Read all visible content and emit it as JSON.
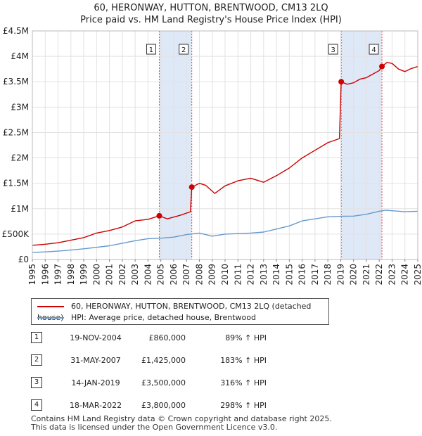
{
  "title": {
    "line1": "60, HERONWAY, HUTTON, BRENTWOOD, CM13 2LQ",
    "line2": "Price paid vs. HM Land Registry's House Price Index (HPI)"
  },
  "chart_data": {
    "type": "line",
    "title": "60, HERONWAY, HUTTON, BRENTWOOD, CM13 2LQ — Price paid vs. HM Land Registry's House Price Index (HPI)",
    "xlim": [
      1995,
      2025
    ],
    "ylim": [
      0,
      4500000
    ],
    "y_ticks": [
      {
        "value": 0,
        "label": "£0"
      },
      {
        "value": 500000,
        "label": "£500K"
      },
      {
        "value": 1000000,
        "label": "£1M"
      },
      {
        "value": 1500000,
        "label": "£1.5M"
      },
      {
        "value": 2000000,
        "label": "£2M"
      },
      {
        "value": 2500000,
        "label": "£2.5M"
      },
      {
        "value": 3000000,
        "label": "£3M"
      },
      {
        "value": 3500000,
        "label": "£3.5M"
      },
      {
        "value": 4000000,
        "label": "£4M"
      },
      {
        "value": 4500000,
        "label": "£4.5M"
      }
    ],
    "x_ticks": [
      "1995",
      "1996",
      "1997",
      "1998",
      "1999",
      "2000",
      "2001",
      "2002",
      "2003",
      "2004",
      "2005",
      "2006",
      "2007",
      "2008",
      "2009",
      "2010",
      "2011",
      "2012",
      "2013",
      "2014",
      "2015",
      "2016",
      "2017",
      "2018",
      "2019",
      "2020",
      "2021",
      "2022",
      "2023",
      "2024",
      "2025"
    ],
    "grid": true,
    "shaded_ranges": [
      [
        2004.88,
        2007.41
      ],
      [
        2019.04,
        2022.21
      ]
    ],
    "sale_markers": [
      {
        "label": "1",
        "x": 2004.88,
        "y": 860000
      },
      {
        "label": "2",
        "x": 2007.41,
        "y": 1425000
      },
      {
        "label": "3",
        "x": 2019.04,
        "y": 3500000
      },
      {
        "label": "4",
        "x": 2022.21,
        "y": 3800000
      }
    ],
    "series": [
      {
        "name": "60, HERONWAY, HUTTON, BRENTWOOD, CM13 2LQ (detached house)",
        "color": "#cc0000",
        "x": [
          1995.0,
          1996.0,
          1997.0,
          1998.0,
          1999.0,
          2000.0,
          2001.0,
          2002.0,
          2003.0,
          2004.0,
          2004.88,
          2005.5,
          2006.5,
          2007.3,
          2007.41,
          2008.0,
          2008.5,
          2009.2,
          2010.0,
          2011.0,
          2012.0,
          2013.0,
          2014.0,
          2015.0,
          2016.0,
          2017.0,
          2018.0,
          2018.9,
          2019.04,
          2019.5,
          2020.0,
          2020.5,
          2021.0,
          2021.5,
          2022.0,
          2022.21,
          2022.6,
          2023.0,
          2023.5,
          2024.0,
          2024.5,
          2025.0
        ],
        "y": [
          280000,
          300000,
          330000,
          380000,
          430000,
          520000,
          570000,
          640000,
          760000,
          790000,
          860000,
          800000,
          870000,
          940000,
          1425000,
          1500000,
          1460000,
          1300000,
          1450000,
          1550000,
          1600000,
          1520000,
          1650000,
          1800000,
          2000000,
          2150000,
          2300000,
          2380000,
          3500000,
          3450000,
          3480000,
          3550000,
          3580000,
          3650000,
          3720000,
          3800000,
          3880000,
          3860000,
          3750000,
          3700000,
          3760000,
          3800000
        ]
      },
      {
        "name": "HPI: Average price, detached house, Brentwood",
        "color": "#6699cc",
        "x": [
          1995.0,
          1996.0,
          1997.0,
          1998.0,
          1999.0,
          2000.0,
          2001.0,
          2002.0,
          2003.0,
          2004.0,
          2005.0,
          2006.0,
          2007.0,
          2008.0,
          2009.0,
          2010.0,
          2011.0,
          2012.0,
          2013.0,
          2014.0,
          2015.0,
          2016.0,
          2017.0,
          2018.0,
          2019.0,
          2020.0,
          2021.0,
          2022.0,
          2022.5,
          2023.0,
          2024.0,
          2025.0
        ],
        "y": [
          140000,
          150000,
          165000,
          185000,
          210000,
          240000,
          270000,
          320000,
          370000,
          410000,
          420000,
          440000,
          490000,
          520000,
          460000,
          500000,
          510000,
          520000,
          540000,
          600000,
          660000,
          760000,
          800000,
          840000,
          850000,
          855000,
          890000,
          950000,
          970000,
          960000,
          940000,
          950000
        ]
      }
    ]
  },
  "legend": {
    "items": [
      {
        "label": "60, HERONWAY, HUTTON, BRENTWOOD, CM13 2LQ (detached house)",
        "color": "#cc0000"
      },
      {
        "label": "HPI: Average price, detached house, Brentwood",
        "color": "#6699cc"
      }
    ]
  },
  "sales": [
    {
      "num": "1",
      "date": "19-NOV-2004",
      "price": "£860,000",
      "hpi": "89% ↑ HPI"
    },
    {
      "num": "2",
      "date": "31-MAY-2007",
      "price": "£1,425,000",
      "hpi": "183% ↑ HPI"
    },
    {
      "num": "3",
      "date": "14-JAN-2019",
      "price": "£3,500,000",
      "hpi": "316% ↑ HPI"
    },
    {
      "num": "4",
      "date": "18-MAR-2022",
      "price": "£3,800,000",
      "hpi": "298% ↑ HPI"
    }
  ],
  "footer": {
    "line1": "Contains HM Land Registry data © Crown copyright and database right 2025.",
    "line2": "This data is licensed under the Open Government Licence v3.0."
  }
}
